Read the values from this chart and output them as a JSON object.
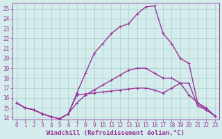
{
  "xlabel": "Windchill (Refroidissement éolien,°C)",
  "xlim": [
    -0.5,
    23.5
  ],
  "ylim": [
    13.8,
    25.6
  ],
  "yticks": [
    14,
    15,
    16,
    17,
    18,
    19,
    20,
    21,
    22,
    23,
    24,
    25
  ],
  "xticks": [
    0,
    1,
    2,
    3,
    4,
    5,
    6,
    7,
    8,
    9,
    10,
    11,
    12,
    13,
    14,
    15,
    16,
    17,
    18,
    19,
    20,
    21,
    22,
    23
  ],
  "bg_color": "#d4ecec",
  "grid_color": "#aacccc",
  "line_color": "#993399",
  "line1_x": [
    0,
    1,
    2,
    3,
    4,
    5,
    6,
    7,
    8,
    9,
    10,
    11,
    12,
    13,
    14,
    15,
    16,
    17,
    18,
    19,
    20,
    21,
    22,
    23
  ],
  "line1_y": [
    15.5,
    15.0,
    14.8,
    14.4,
    14.1,
    13.9,
    14.4,
    16.3,
    16.4,
    16.5,
    16.6,
    16.7,
    16.8,
    16.9,
    17.0,
    17.0,
    16.8,
    16.5,
    17.0,
    17.5,
    17.5,
    15.2,
    14.8,
    14.2
  ],
  "line2_x": [
    0,
    1,
    2,
    3,
    4,
    5,
    6,
    7,
    8,
    9,
    10,
    11,
    12,
    13,
    14,
    15,
    16,
    17,
    18,
    19,
    20,
    21,
    22,
    23
  ],
  "line2_y": [
    15.5,
    15.0,
    14.8,
    14.4,
    14.1,
    13.9,
    14.4,
    15.5,
    16.3,
    16.8,
    17.3,
    17.8,
    18.3,
    18.8,
    19.0,
    19.0,
    18.5,
    18.0,
    18.0,
    17.5,
    16.3,
    15.5,
    14.8,
    14.2
  ],
  "line3_x": [
    0,
    1,
    2,
    3,
    4,
    5,
    6,
    7,
    8,
    9,
    10,
    11,
    12,
    13,
    14,
    15,
    16,
    17,
    18,
    19,
    20,
    21,
    22,
    23
  ],
  "line3_y": [
    15.5,
    15.0,
    14.8,
    14.4,
    14.1,
    13.9,
    14.4,
    16.5,
    18.5,
    20.5,
    21.5,
    22.5,
    23.2,
    23.5,
    24.5,
    25.2,
    25.3,
    22.5,
    21.5,
    20.0,
    19.5,
    15.5,
    15.0,
    14.2
  ],
  "markersize": 3.5,
  "linewidth": 1.0,
  "tick_fontsize": 5.5,
  "label_fontsize": 6.5
}
